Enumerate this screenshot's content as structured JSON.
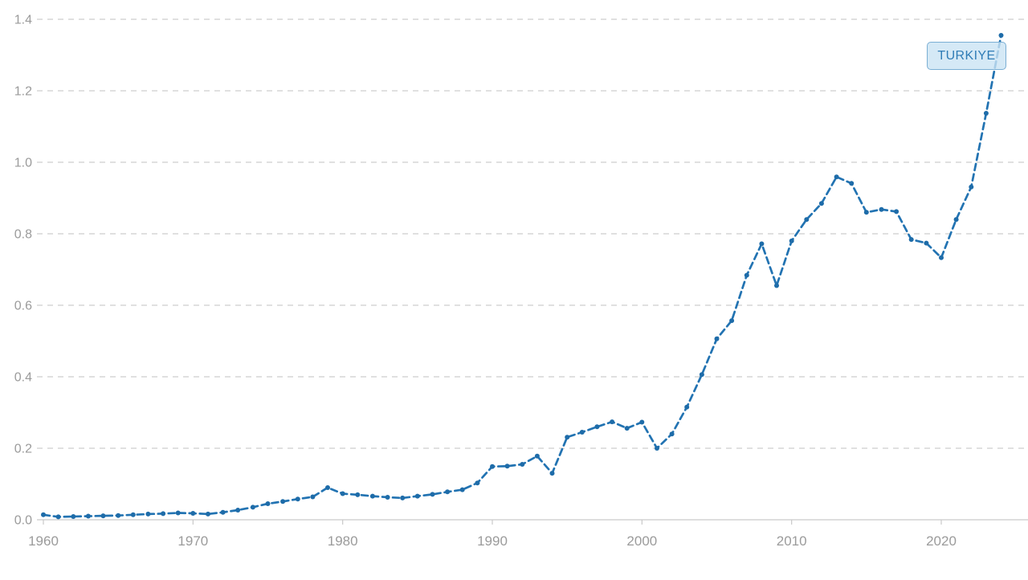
{
  "chart_label": {
    "text": "TURKIYE"
  },
  "colors": {
    "background": "#ffffff",
    "line": "#2273b2",
    "marker": "#1e6ca9",
    "gridline": "#d6d6d6",
    "axis_line": "#c9c9c9",
    "tick_mark": "#c9c9c9",
    "tick_label": "#9b9b9b",
    "chip_fill": "rgba(203,228,244,0.8)",
    "chip_border": "#7bafd4",
    "chip_text": "#2f7cb6"
  },
  "chart_data": {
    "type": "line",
    "title": "",
    "xlabel": "",
    "ylabel": "",
    "grid": "horizontal dashed gridlines",
    "line_style": "dashed line with round dot markers",
    "legend_position": "annotation chip near last data point, top right",
    "annotation": "TURKIYE",
    "xlim": [
      1959.5,
      2025.8
    ],
    "ylim": [
      0,
      1.4
    ],
    "x_ticks": [
      1960,
      1970,
      1980,
      1990,
      2000,
      2010,
      2020
    ],
    "x_tick_labels": [
      "1960",
      "1970",
      "1980",
      "1990",
      "2000",
      "2010",
      "2020"
    ],
    "y_ticks": [
      0.0,
      0.2,
      0.4,
      0.6,
      0.8,
      1.0,
      1.2,
      1.4
    ],
    "y_tick_labels": [
      "0.0",
      "0.2",
      "0.4",
      "0.6",
      "0.8",
      "1.0",
      "1.2",
      "1.4"
    ],
    "x": [
      1960,
      1961,
      1962,
      1963,
      1964,
      1965,
      1966,
      1967,
      1968,
      1969,
      1970,
      1971,
      1972,
      1973,
      1974,
      1975,
      1976,
      1977,
      1978,
      1979,
      1980,
      1981,
      1982,
      1983,
      1984,
      1985,
      1986,
      1987,
      1988,
      1989,
      1990,
      1991,
      1992,
      1993,
      1994,
      1995,
      1996,
      1997,
      1998,
      1999,
      2000,
      2001,
      2002,
      2003,
      2004,
      2005,
      2006,
      2007,
      2008,
      2009,
      2010,
      2011,
      2012,
      2013,
      2014,
      2015,
      2016,
      2017,
      2018,
      2019,
      2020,
      2021,
      2022,
      2023,
      2024
    ],
    "series": [
      {
        "name": "TURKIYE",
        "values": [
          0.014,
          0.008,
          0.009,
          0.01,
          0.011,
          0.012,
          0.014,
          0.016,
          0.017,
          0.019,
          0.018,
          0.016,
          0.021,
          0.027,
          0.035,
          0.045,
          0.051,
          0.058,
          0.064,
          0.09,
          0.073,
          0.07,
          0.066,
          0.063,
          0.061,
          0.066,
          0.071,
          0.078,
          0.084,
          0.103,
          0.149,
          0.15,
          0.155,
          0.178,
          0.13,
          0.231,
          0.245,
          0.26,
          0.274,
          0.256,
          0.273,
          0.2,
          0.24,
          0.315,
          0.406,
          0.506,
          0.557,
          0.684,
          0.772,
          0.655,
          0.78,
          0.84,
          0.885,
          0.959,
          0.941,
          0.86,
          0.868,
          0.862,
          0.784,
          0.774,
          0.733,
          0.84,
          0.931,
          1.137,
          1.355
        ]
      }
    ]
  }
}
